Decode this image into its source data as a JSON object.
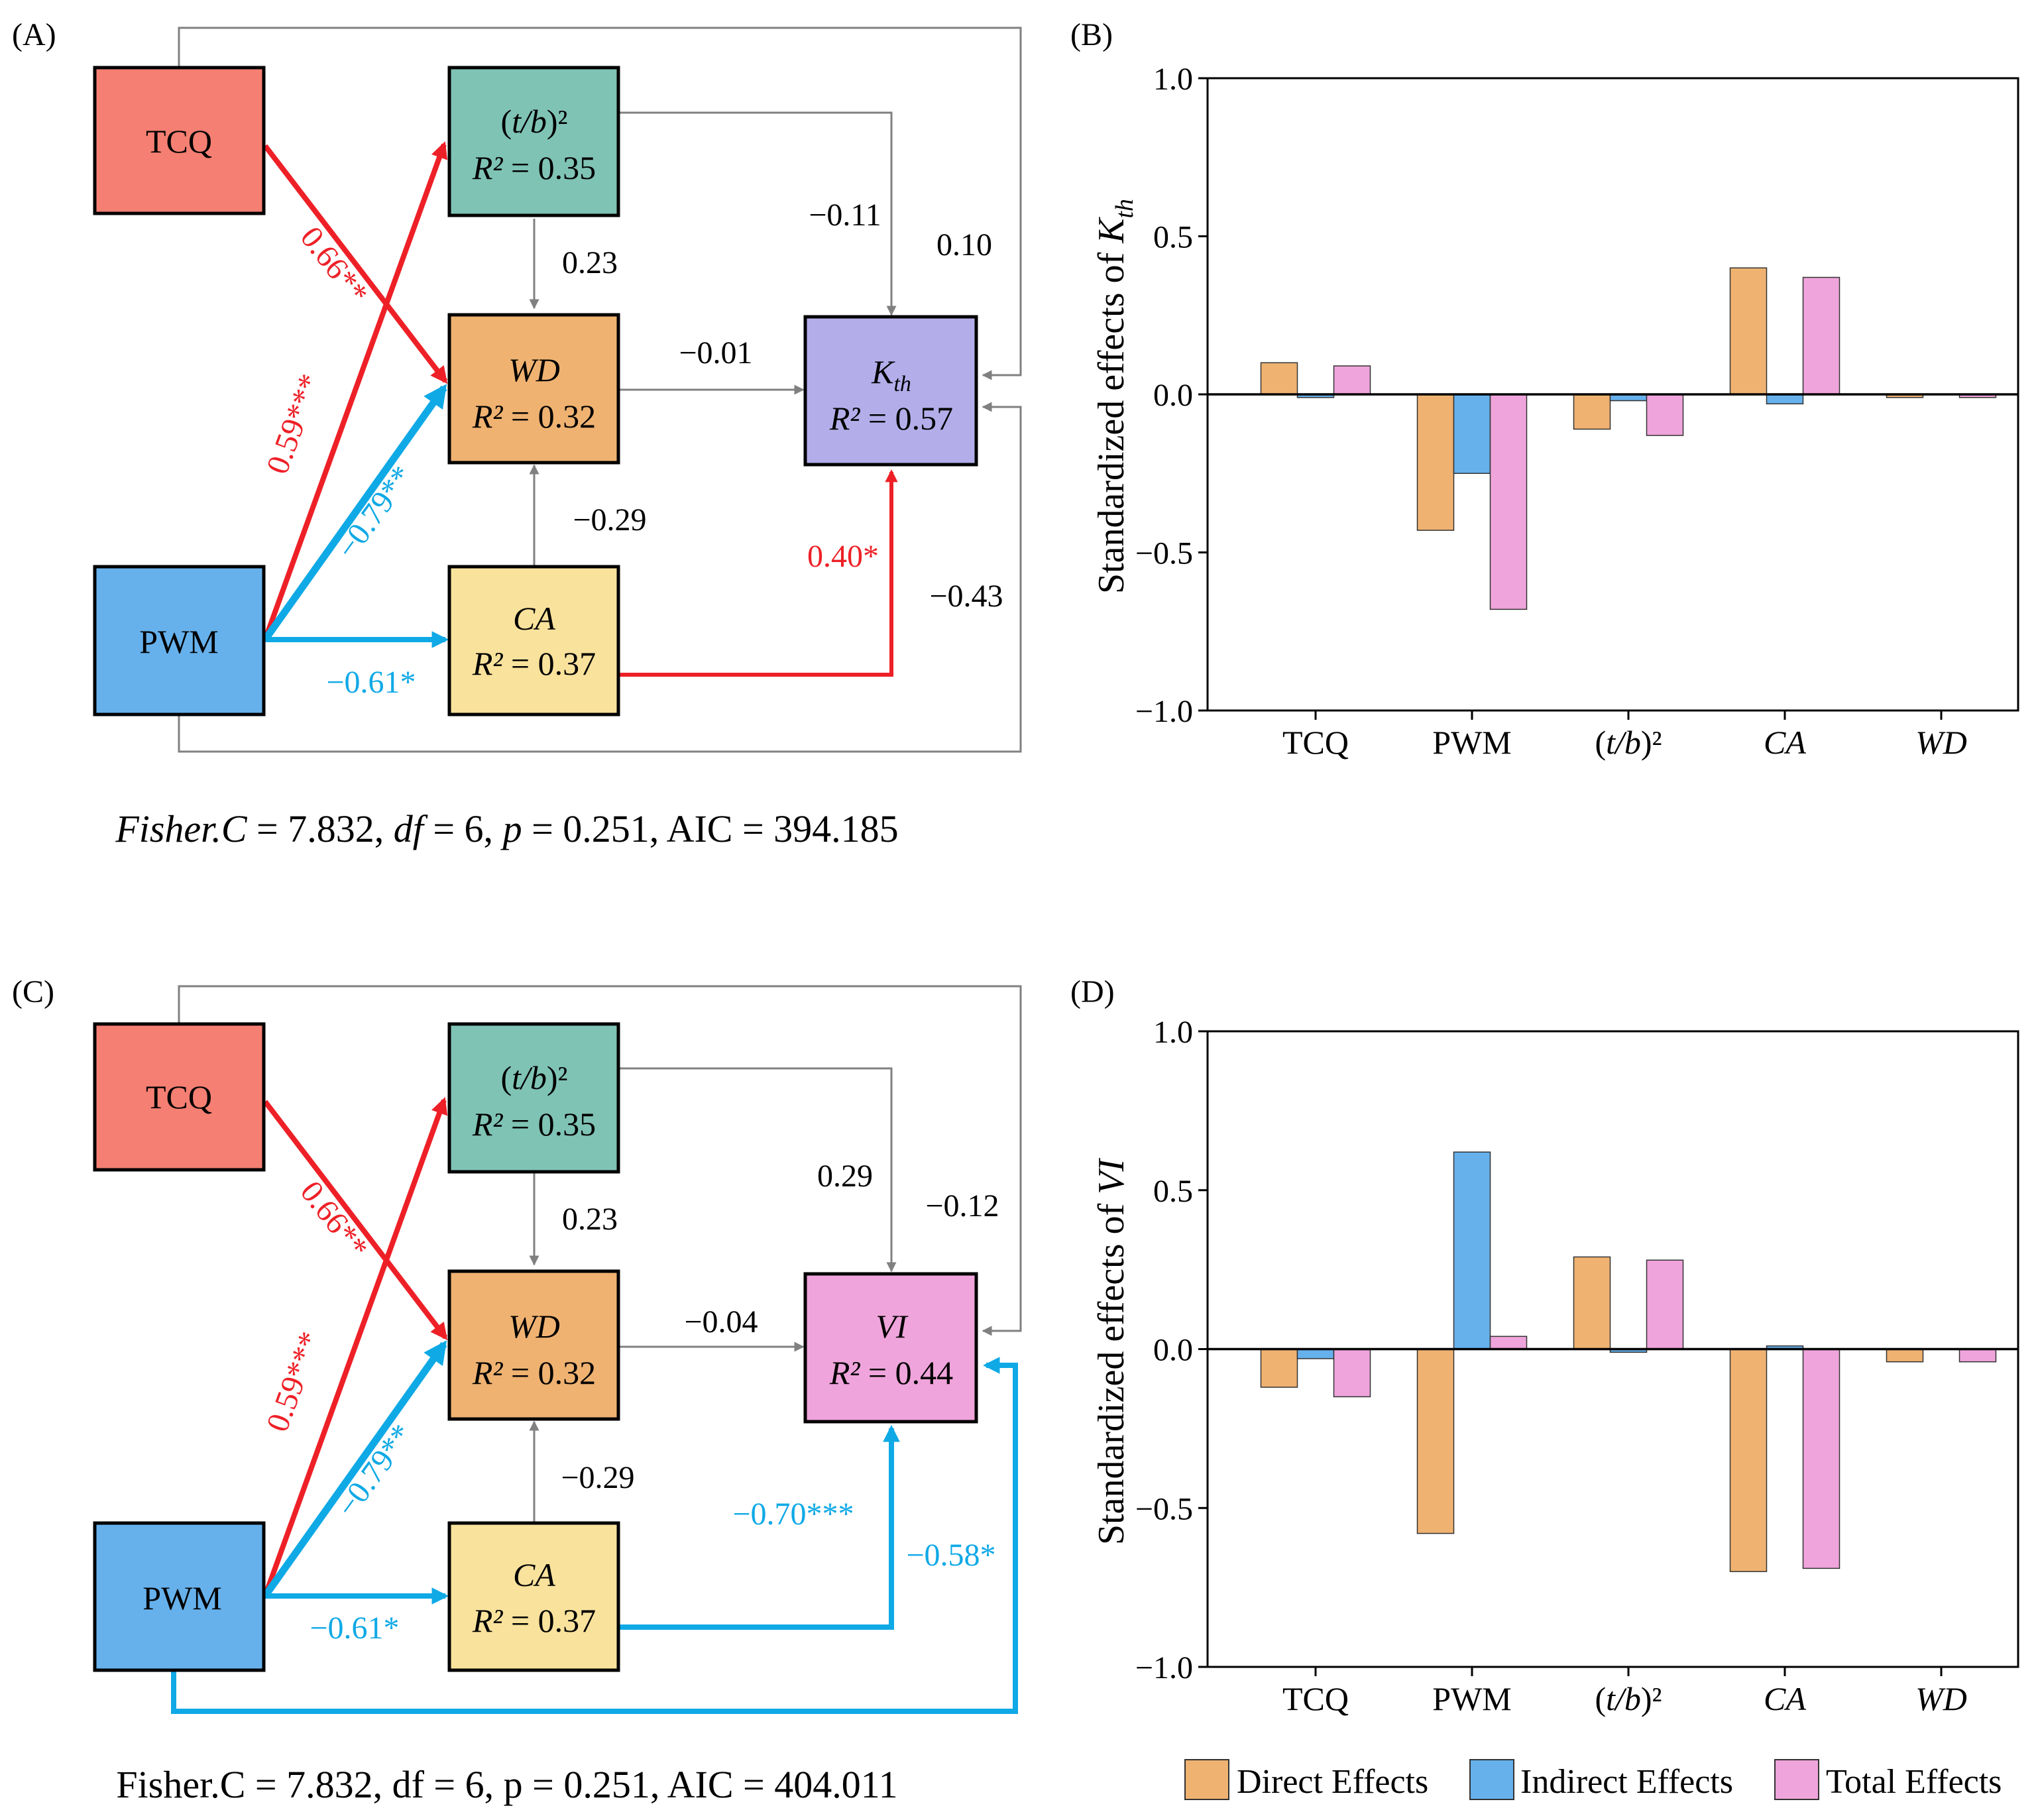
{
  "panels": {
    "a": {
      "label": "(A)",
      "nodes": {
        "tcq": "TCQ",
        "pwm": "PWM",
        "tb": {
          "name_pre": "(",
          "name_var": "t/b",
          "name_post": ")²",
          "r2": "= 0.35"
        },
        "wd": {
          "name": "WD",
          "r2": "= 0.32"
        },
        "ca": {
          "name": "CA",
          "r2": "= 0.37"
        },
        "kth": {
          "name": "K",
          "sub": "th",
          "r2": "= 0.57"
        }
      },
      "r2_prefix": "R²",
      "coefficients": {
        "tcq_wd": "0.66**",
        "pwm_tb": "0.59***",
        "pwm_wd": "−0.79**",
        "pwm_ca": "−0.61*",
        "tb_wd": "0.23",
        "ca_wd": "−0.29",
        "wd_kth": "−0.01",
        "tb_kth": "−0.11",
        "tcq_kth": "0.10",
        "ca_kth": "0.40*",
        "pwm_kth": "−0.43"
      },
      "fit": {
        "fisher": "Fisher.C",
        "rest1": " = 7.832, ",
        "df": "df",
        "rest2": " = 6, ",
        "p": "p",
        "rest3": " = 0.251, AIC = 394.185"
      }
    },
    "b": {
      "label": "(B)",
      "ylabel_prefix": "Standardized effects of ",
      "ylabel_var": "K",
      "ylabel_sub": "th"
    },
    "c": {
      "label": "(C)",
      "nodes": {
        "tcq": "TCQ",
        "pwm": "PWM",
        "tb": {
          "name_pre": "(",
          "name_var": "t/b",
          "name_post": ")²",
          "r2": "= 0.35"
        },
        "wd": {
          "name": "WD",
          "r2": "= 0.32"
        },
        "ca": {
          "name": "CA",
          "r2": "= 0.37"
        },
        "vi": {
          "name": "VI",
          "r2": "= 0.44"
        }
      },
      "r2_prefix": "R²",
      "coefficients": {
        "tcq_wd": "0.66**",
        "pwm_tb": "0.59***",
        "pwm_wd": "−0.79**",
        "pwm_ca": "−0.61*",
        "tb_wd": "0.23",
        "ca_wd": "−0.29",
        "wd_vi": "−0.04",
        "tb_vi": "0.29",
        "tcq_vi": "−0.12",
        "ca_vi": "−0.70***",
        "pwm_vi": "−0.58*"
      },
      "fit": "Fisher.C = 7.832, df = 6, p = 0.251, AIC = 404.011"
    },
    "d": {
      "label": "(D)",
      "ylabel_prefix": "Standardized effects of ",
      "ylabel_var": "VI"
    }
  },
  "colors": {
    "tcq": "#F47F72",
    "pwm": "#66B1EC",
    "tb": "#7FC3B5",
    "wd": "#EFB271",
    "ca": "#F9E29C",
    "kth": "#B3AEEA",
    "vi": "#EFA4DB",
    "positive": "#EE2027",
    "negative": "#0FA9E6",
    "neutral": "#808080",
    "direct": "#EFB271",
    "indirect": "#66B1EC",
    "total": "#EFA4DB"
  },
  "legend": [
    "Direct Effects",
    "Indirect Effects",
    "Total Effects"
  ],
  "chart_data": [
    {
      "type": "bar",
      "title": "(B)",
      "ylabel": "Standardized effects of K_th",
      "xlabel": "",
      "categories": [
        "TCQ",
        "PWM",
        "(t/b)²",
        "CA",
        "WD"
      ],
      "ylim": [
        -1.0,
        1.0
      ],
      "yticks": [
        "1.0",
        "0.5",
        "0.0",
        "−0.5",
        "−1.0"
      ],
      "series": [
        {
          "name": "Direct Effects",
          "values": [
            0.1,
            -0.43,
            -0.11,
            0.4,
            -0.01
          ]
        },
        {
          "name": "Indirect Effects",
          "values": [
            -0.01,
            -0.25,
            -0.02,
            -0.03,
            0.0
          ]
        },
        {
          "name": "Total Effects",
          "values": [
            0.09,
            -0.68,
            -0.13,
            0.37,
            -0.01
          ]
        }
      ]
    },
    {
      "type": "bar",
      "title": "(D)",
      "ylabel": "Standardized effects of VI",
      "xlabel": "",
      "categories": [
        "TCQ",
        "PWM",
        "(t/b)²",
        "CA",
        "WD"
      ],
      "ylim": [
        -1.0,
        1.0
      ],
      "yticks": [
        "1.0",
        "0.5",
        "0.0",
        "−0.5",
        "−1.0"
      ],
      "series": [
        {
          "name": "Direct Effects",
          "values": [
            -0.12,
            -0.58,
            0.29,
            -0.7,
            -0.04
          ]
        },
        {
          "name": "Indirect Effects",
          "values": [
            -0.03,
            0.62,
            -0.01,
            0.01,
            0.0
          ]
        },
        {
          "name": "Total Effects",
          "values": [
            -0.15,
            0.04,
            0.28,
            -0.69,
            -0.04
          ]
        }
      ]
    }
  ]
}
